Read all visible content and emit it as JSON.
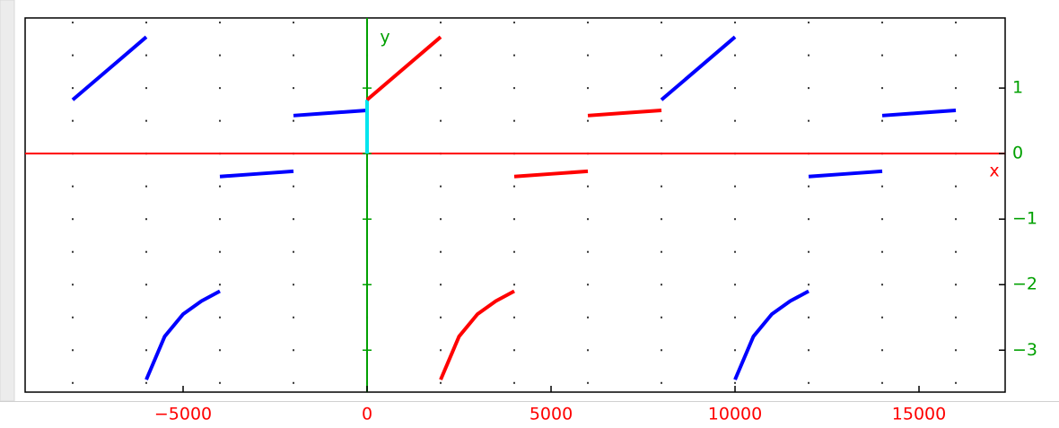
{
  "chart_data": {
    "type": "line",
    "xlabel": "x",
    "ylabel": "y",
    "xlim": [
      -9293,
      17341
    ],
    "ylim": [
      -3.64,
      2.07
    ],
    "xticks": [
      {
        "value": -5000,
        "label": "−5000"
      },
      0,
      5000,
      10000,
      15000
    ],
    "yticks": [
      {
        "value": -3,
        "label": "−3"
      },
      {
        "value": -2,
        "label": "−2"
      },
      {
        "value": -1,
        "label": "−1"
      },
      0,
      1
    ],
    "grid": true,
    "x_axis_color": "#ff0000",
    "y_axis_color": "#00a000",
    "series": [
      {
        "color": "#0000ff",
        "x": [
          -8000,
          -6000,
          -6000,
          -6000,
          -5500,
          -5000,
          -4500,
          -4000,
          -4000,
          -4000,
          -3000,
          -2000,
          -2000,
          -2000,
          -1000,
          0
        ],
        "values": [
          0.82,
          1.78,
          null,
          -3.45,
          -2.79,
          -2.45,
          -2.25,
          -2.1,
          null,
          -0.35,
          -0.31,
          -0.27,
          null,
          0.58,
          0.62,
          0.66
        ]
      },
      {
        "color": "#00e5ee",
        "x": [
          0,
          0
        ],
        "values": [
          0,
          0.82
        ]
      },
      {
        "color": "#ff0000",
        "x": [
          0,
          2000,
          2000,
          2000,
          2500,
          3000,
          3500,
          4000,
          4000,
          4000,
          5000,
          6000,
          6000,
          6000,
          7000,
          8000
        ],
        "values": [
          0.82,
          1.78,
          null,
          -3.45,
          -2.79,
          -2.45,
          -2.25,
          -2.1,
          null,
          -0.35,
          -0.31,
          -0.27,
          null,
          0.58,
          0.62,
          0.66
        ]
      },
      {
        "color": "#0000ff",
        "x": [
          8000,
          10000,
          10000,
          10000,
          10500,
          11000,
          11500,
          12000,
          12000,
          12000,
          13000,
          14000,
          14000,
          14000,
          15000,
          16000
        ],
        "values": [
          0.82,
          1.78,
          null,
          -3.45,
          -2.79,
          -2.45,
          -2.25,
          -2.1,
          null,
          -0.35,
          -0.31,
          -0.27,
          null,
          0.58,
          0.62,
          0.66
        ]
      }
    ]
  }
}
